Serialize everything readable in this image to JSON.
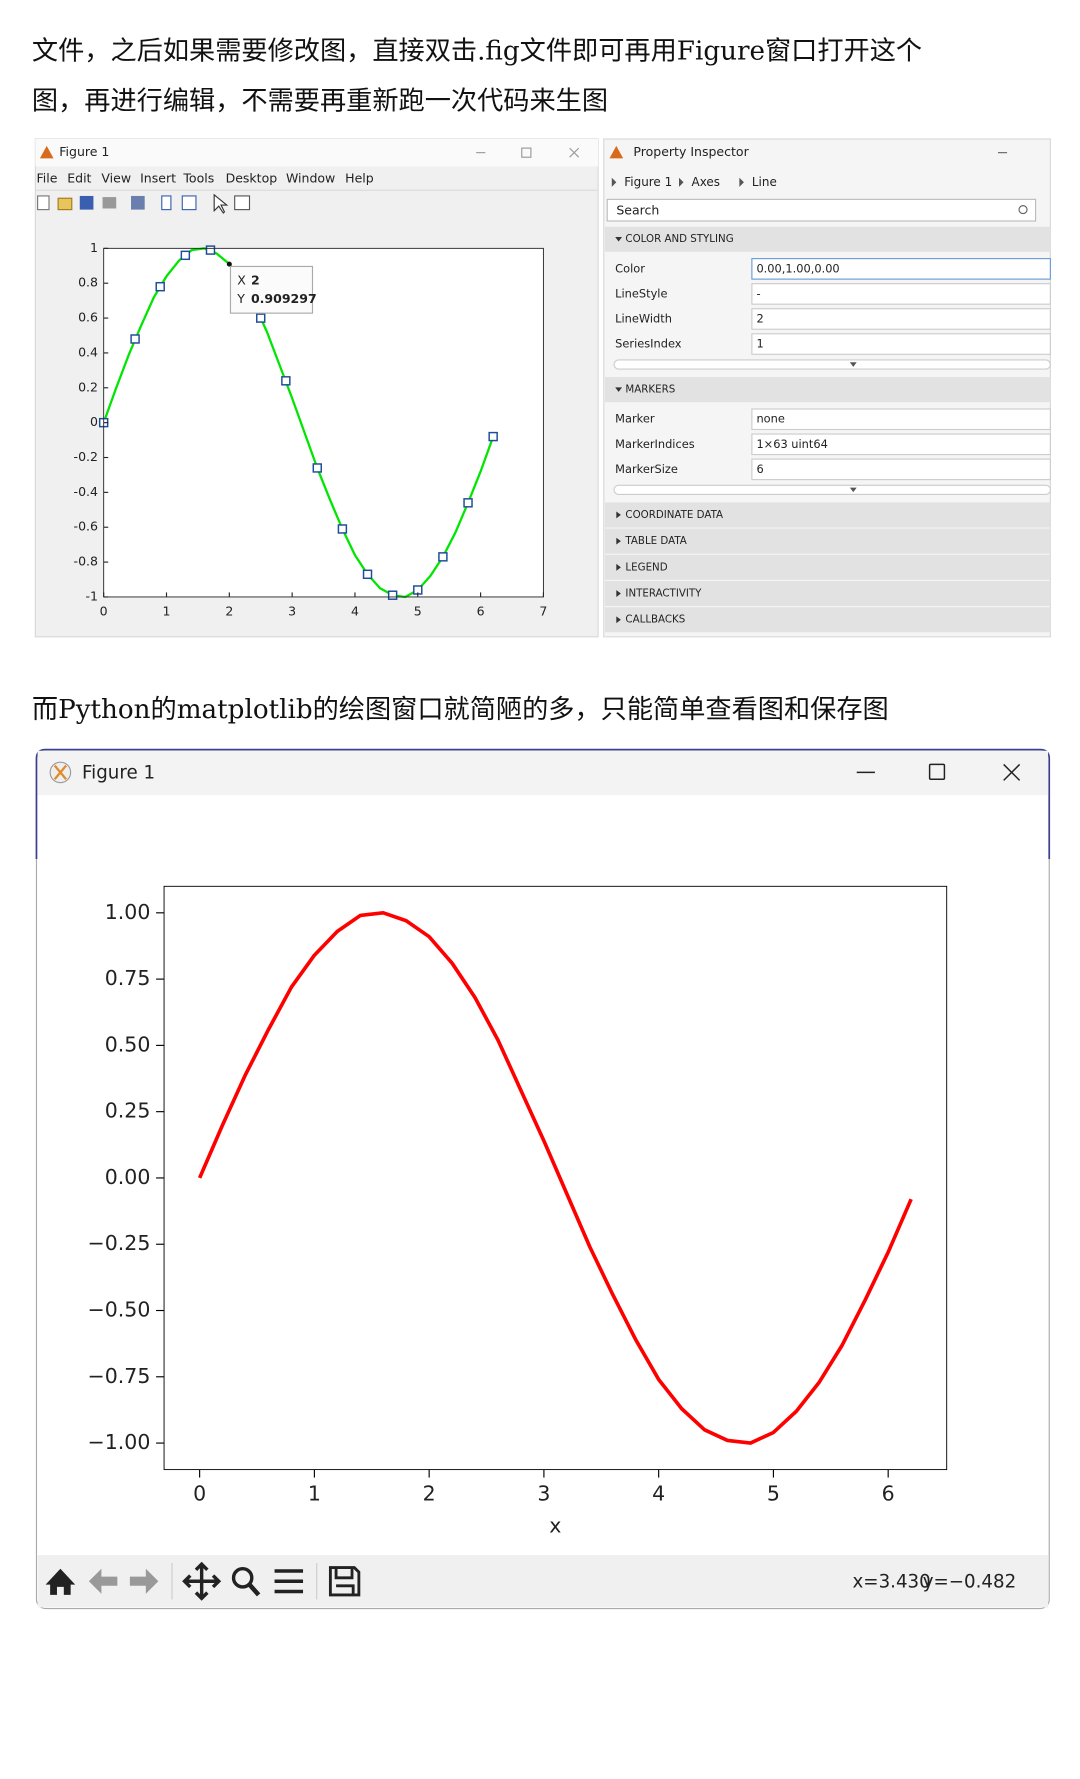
{
  "paragraphs": {
    "first": [
      "文件，之后如果需要修改图，直接双击.fig文件即可再用Figure窗口打开这个",
      "图，再进行编辑，不需要再重新跑一次代码来生图"
    ],
    "second": "而Python的matplotlib的绘图窗口就简陋的多，只能简单查看图和保存图"
  },
  "matlab_window": {
    "title": "Figure 1",
    "menu": [
      "File",
      "Edit",
      "View",
      "Insert",
      "Tools",
      "Desktop",
      "Window",
      "Help"
    ]
  },
  "property_inspector": {
    "title": "Property Inspector",
    "breadcrumb": [
      "Figure 1",
      "Axes",
      "Line"
    ],
    "search": "Search",
    "sections": [
      {
        "title": "COLOR AND STYLING",
        "rows": [
          [
            "Color",
            "0.00,1.00,0.00"
          ],
          [
            "LineStyle",
            "-"
          ],
          [
            "LineWidth",
            2
          ],
          [
            "SeriesIndex",
            1
          ]
        ]
      },
      {
        "title": "MARKERS",
        "rows": [
          [
            "Marker",
            "none"
          ],
          [
            "MarkerIndices",
            "1×63 uint64"
          ],
          [
            "MarkerSize",
            6
          ]
        ]
      },
      {
        "title": "COORDINATE DATA"
      },
      {
        "title": "TABLE DATA"
      },
      {
        "title": "LEGEND"
      },
      {
        "title": "INTERACTIVITY"
      },
      {
        "title": "CALLBACKS"
      }
    ]
  },
  "python_window": {
    "title": "Figure 1",
    "status_x": "x=3.430",
    "status_y": "y=−0.482"
  },
  "chart_data": [
    {
      "type": "line",
      "x": [
        0,
        0.2,
        0.4,
        0.6,
        0.8,
        1.0,
        1.2,
        1.4,
        1.6,
        1.8,
        2.0,
        2.2,
        2.4,
        2.6,
        2.8,
        3.0,
        3.2,
        3.4,
        3.6,
        3.8,
        4.0,
        4.2,
        4.4,
        4.6,
        4.8,
        5.0,
        5.2,
        5.4,
        5.6,
        5.8,
        6.0,
        6.2
      ],
      "series": [
        {
          "color": "#00e600",
          "values": [
            0,
            0.2,
            0.39,
            0.56,
            0.72,
            0.84,
            0.93,
            0.99,
            1.0,
            0.97,
            0.91,
            0.81,
            0.68,
            0.52,
            0.33,
            0.14,
            -0.06,
            -0.26,
            -0.44,
            -0.61,
            -0.76,
            -0.87,
            -0.95,
            -0.99,
            -1.0,
            -0.96,
            -0.88,
            -0.77,
            -0.63,
            -0.46,
            -0.28,
            -0.08
          ]
        }
      ],
      "markers": {
        "color": "#1f4e99",
        "x": [
          0,
          0.5,
          0.9,
          1.3,
          1.7,
          2.5,
          2.9,
          3.4,
          3.8,
          4.2,
          4.6,
          5.0,
          5.4,
          5.8,
          6.2
        ],
        "values": [
          0,
          0.48,
          0.78,
          0.96,
          0.99,
          0.6,
          0.24,
          -0.26,
          -0.61,
          -0.87,
          -0.99,
          -0.96,
          -0.77,
          -0.46,
          -0.08
        ]
      },
      "datatip": {
        "x_label": "X",
        "x": 2,
        "y_label": "Y",
        "y": 0.909297
      },
      "xlim": [
        0,
        7
      ],
      "ylim": [
        -1,
        1
      ],
      "xticks": [
        0,
        1,
        2,
        3,
        4,
        5,
        6,
        7
      ],
      "yticks": [
        -1,
        -0.8,
        -0.6,
        -0.4,
        -0.2,
        0,
        0.2,
        0.4,
        0.6,
        0.8,
        1
      ]
    },
    {
      "type": "line",
      "x": [
        0,
        0.2,
        0.4,
        0.6,
        0.8,
        1.0,
        1.2,
        1.4,
        1.6,
        1.8,
        2.0,
        2.2,
        2.4,
        2.6,
        2.8,
        3.0,
        3.2,
        3.4,
        3.6,
        3.8,
        4.0,
        4.2,
        4.4,
        4.6,
        4.8,
        5.0,
        5.2,
        5.4,
        5.6,
        5.8,
        6.0,
        6.2
      ],
      "series": [
        {
          "color": "#ff0000",
          "values": [
            0,
            0.2,
            0.39,
            0.56,
            0.72,
            0.84,
            0.93,
            0.99,
            1.0,
            0.97,
            0.91,
            0.81,
            0.68,
            0.52,
            0.33,
            0.14,
            -0.06,
            -0.26,
            -0.44,
            -0.61,
            -0.76,
            -0.87,
            -0.95,
            -0.99,
            -1.0,
            -0.96,
            -0.88,
            -0.77,
            -0.63,
            -0.46,
            -0.28,
            -0.08
          ]
        }
      ],
      "xlabel": "x",
      "xlim": [
        -0.31,
        6.51
      ],
      "ylim": [
        -1.1,
        1.1
      ],
      "xticks": [
        0,
        1,
        2,
        3,
        4,
        5,
        6
      ],
      "yticks": [
        {
          "value": -1,
          "label": "−1.00"
        },
        {
          "value": -0.75,
          "label": "−0.75"
        },
        {
          "value": -0.5,
          "label": "−0.50"
        },
        {
          "value": -0.25,
          "label": "−0.25"
        },
        {
          "value": 0,
          "label": "0.00"
        },
        {
          "value": 0.25,
          "label": "0.25"
        },
        {
          "value": 0.5,
          "label": "0.50"
        },
        {
          "value": 0.75,
          "label": "0.75"
        },
        {
          "value": 1,
          "label": "1.00"
        }
      ]
    }
  ]
}
